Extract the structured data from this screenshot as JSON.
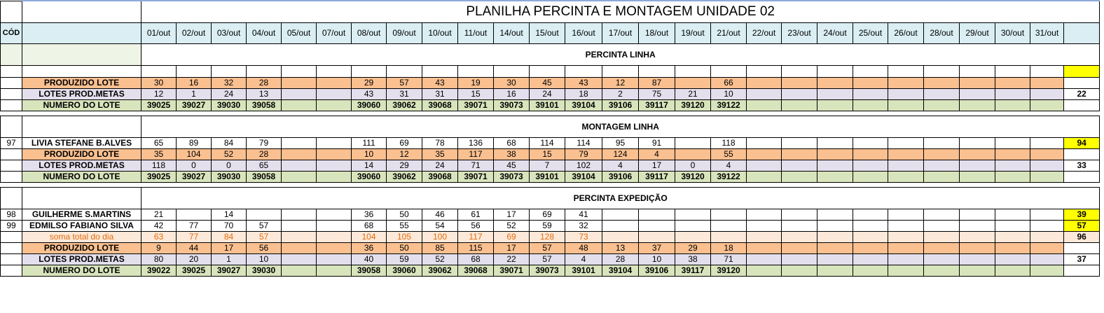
{
  "title": "PLANILHA PERCINTA E MONTAGEM UNIDADE 02",
  "cod_header": "CÓD",
  "dates": [
    "01/out",
    "02/out",
    "03/out",
    "04/out",
    "05/out",
    "07/out",
    "08/out",
    "09/out",
    "10/out",
    "11/out",
    "14/out",
    "15/out",
    "16/out",
    "17/out",
    "18/out",
    "19/out",
    "21/out",
    "22/out",
    "23/out",
    "24/out",
    "25/out",
    "26/out",
    "28/out",
    "29/out",
    "30/out",
    "31/out"
  ],
  "sections": [
    {
      "title": "PERCINTA LINHA",
      "leading_blank_row": true,
      "rows": [
        {
          "type": "prod",
          "cod": "",
          "label": "PRODUZIDO LOTE",
          "values": [
            "30",
            "16",
            "32",
            "28",
            "",
            "",
            "29",
            "57",
            "43",
            "19",
            "30",
            "45",
            "43",
            "12",
            "87",
            "",
            "66",
            "",
            "",
            "",
            "",
            "",
            "",
            "",
            "",
            ""
          ],
          "total": ""
        },
        {
          "type": "metas",
          "cod": "",
          "label": "LOTES PROD.METAS",
          "values": [
            "12",
            "1",
            "24",
            "13",
            "",
            "",
            "43",
            "31",
            "31",
            "15",
            "16",
            "24",
            "18",
            "2",
            "75",
            "21",
            "10",
            "",
            "",
            "",
            "",
            "",
            "",
            "",
            "",
            ""
          ],
          "total": "22"
        },
        {
          "type": "num",
          "cod": "",
          "label": "NUMERO DO LOTE",
          "values": [
            "39025",
            "39027",
            "39030",
            "39058",
            "",
            "",
            "39060",
            "39062",
            "39068",
            "39071",
            "39073",
            "39101",
            "39104",
            "39106",
            "39117",
            "39120",
            "39122",
            "",
            "",
            "",
            "",
            "",
            "",
            "",
            "",
            ""
          ],
          "total": ""
        }
      ]
    },
    {
      "title": "MONTAGEM LINHA",
      "leading_blank_row": false,
      "rows": [
        {
          "type": "person",
          "cod": "97",
          "label": "LIVIA STEFANE B.ALVES",
          "values": [
            "65",
            "89",
            "84",
            "79",
            "",
            "",
            "111",
            "69",
            "78",
            "136",
            "68",
            "114",
            "114",
            "95",
            "91",
            "",
            "118",
            "",
            "",
            "",
            "",
            "",
            "",
            "",
            "",
            ""
          ],
          "total": "94",
          "hl": true
        },
        {
          "type": "prod",
          "cod": "",
          "label": "PRODUZIDO LOTE",
          "values": [
            "35",
            "104",
            "52",
            "28",
            "",
            "",
            "10",
            "12",
            "35",
            "117",
            "38",
            "15",
            "79",
            "124",
            "4",
            "",
            "55",
            "",
            "",
            "",
            "",
            "",
            "",
            "",
            "",
            ""
          ],
          "total": ""
        },
        {
          "type": "metas",
          "cod": "",
          "label": "LOTES PROD.METAS",
          "values": [
            "118",
            "0",
            "0",
            "65",
            "",
            "",
            "14",
            "29",
            "24",
            "71",
            "45",
            "7",
            "102",
            "4",
            "17",
            "0",
            "4",
            "",
            "",
            "",
            "",
            "",
            "",
            "",
            "",
            ""
          ],
          "total": "33"
        },
        {
          "type": "num",
          "cod": "",
          "label": "NUMERO DO LOTE",
          "values": [
            "39025",
            "39027",
            "39030",
            "39058",
            "",
            "",
            "39060",
            "39062",
            "39068",
            "39071",
            "39073",
            "39101",
            "39104",
            "39106",
            "39117",
            "39120",
            "39122",
            "",
            "",
            "",
            "",
            "",
            "",
            "",
            "",
            ""
          ],
          "total": ""
        }
      ]
    },
    {
      "title": "PERCINTA EXPEDIÇÃO",
      "leading_blank_row": false,
      "rows": [
        {
          "type": "person",
          "cod": "98",
          "label": "GUILHERME S.MARTINS",
          "values": [
            "21",
            "",
            "14",
            "",
            "",
            "",
            "36",
            "50",
            "46",
            "61",
            "17",
            "69",
            "41",
            "",
            "",
            "",
            "",
            "",
            "",
            "",
            "",
            "",
            "",
            "",
            "",
            ""
          ],
          "total": "39",
          "hl": true
        },
        {
          "type": "person",
          "cod": "99",
          "label": "EDMILSO FABIANO SILVA",
          "values": [
            "42",
            "77",
            "70",
            "57",
            "",
            "",
            "68",
            "55",
            "54",
            "56",
            "52",
            "59",
            "32",
            "",
            "",
            "",
            "",
            "",
            "",
            "",
            "",
            "",
            "",
            "",
            "",
            ""
          ],
          "total": "57",
          "hl": true
        },
        {
          "type": "soma",
          "cod": "",
          "label": "soma total  do dia",
          "values": [
            "63",
            "77",
            "84",
            "57",
            "",
            "",
            "104",
            "105",
            "100",
            "117",
            "69",
            "128",
            "73",
            "",
            "",
            "",
            "",
            "",
            "",
            "",
            "",
            "",
            "",
            "",
            "",
            ""
          ],
          "total": "96"
        },
        {
          "type": "prod",
          "cod": "",
          "label": "PRODUZIDO LOTE",
          "values": [
            "9",
            "44",
            "17",
            "56",
            "",
            "",
            "36",
            "50",
            "85",
            "115",
            "17",
            "57",
            "48",
            "13",
            "37",
            "29",
            "18",
            "",
            "",
            "",
            "",
            "",
            "",
            "",
            "",
            ""
          ],
          "total": ""
        },
        {
          "type": "metas",
          "cod": "",
          "label": "LOTES PROD.METAS",
          "values": [
            "80",
            "20",
            "1",
            "10",
            "",
            "",
            "40",
            "59",
            "52",
            "68",
            "22",
            "57",
            "4",
            "28",
            "10",
            "38",
            "71",
            "",
            "",
            "",
            "",
            "",
            "",
            "",
            "",
            ""
          ],
          "total": "37"
        },
        {
          "type": "num",
          "cod": "",
          "label": "NUMERO DO LOTE",
          "values": [
            "39022",
            "39025",
            "39027",
            "39030",
            "",
            "",
            "39058",
            "39060",
            "39062",
            "39068",
            "39071",
            "39073",
            "39101",
            "39104",
            "39106",
            "39117",
            "39120",
            "",
            "",
            "",
            "",
            "",
            "",
            "",
            "",
            ""
          ],
          "total": ""
        }
      ]
    }
  ]
}
